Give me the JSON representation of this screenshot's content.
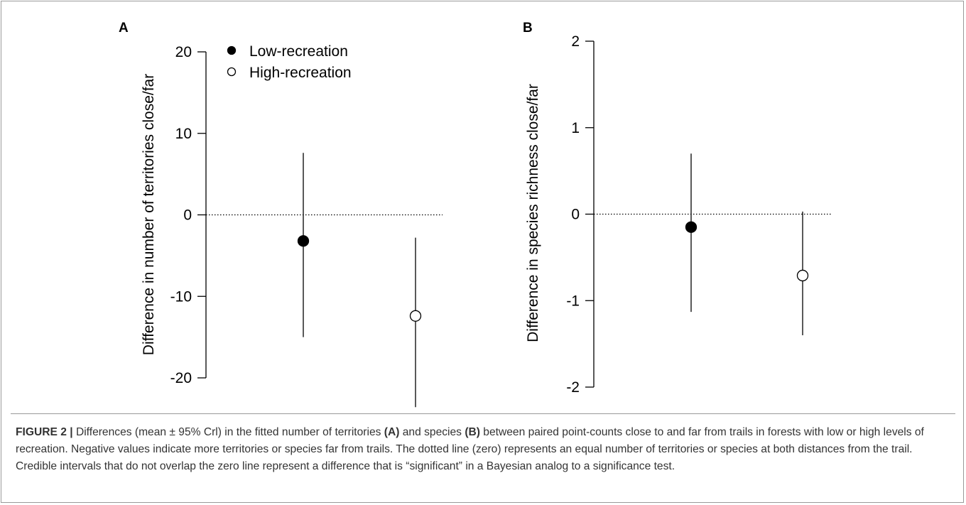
{
  "caption": {
    "label": "FIGURE 2 |",
    "t1": " Differences (mean ± 95% Crl) in the fitted number of territories ",
    "b1": "(A)",
    "t2": " and species ",
    "b2": "(B)",
    "t3": " between paired point-counts close to and far from trails in forests with low or high levels of recreation. Negative values indicate more territories or species far from trails. The dotted line (zero) represents an equal number of territories or species at both distances from the trail. Credible intervals that do not overlap the zero line represent a difference that is “significant” in a Bayesian analog to a significance test."
  },
  "legend": {
    "position": "top-left",
    "items": [
      {
        "label": "Low-recreation",
        "marker": "filled-circle"
      },
      {
        "label": "High-recreation",
        "marker": "open-circle"
      }
    ]
  },
  "chart_data": [
    {
      "type": "scatter",
      "panel": "A",
      "title": "",
      "xlabel": "",
      "ylabel": "Difference in number of territories close/far",
      "ylim": [
        -20,
        20
      ],
      "yticks": [
        20,
        10,
        0,
        -10,
        -20
      ],
      "grid": false,
      "reference_line": {
        "y": 0,
        "style": "dotted"
      },
      "categories": [
        "Low-recreation",
        "High-recreation"
      ],
      "series": [
        {
          "name": "Low-recreation",
          "marker": "filled",
          "mean": -3.2,
          "lower": -15.0,
          "upper": 7.6
        },
        {
          "name": "High-recreation",
          "marker": "open",
          "mean": -12.4,
          "lower": -23.6,
          "upper": -2.8
        }
      ]
    },
    {
      "type": "scatter",
      "panel": "B",
      "title": "",
      "xlabel": "",
      "ylabel": "Difference in species richness close/far",
      "ylim": [
        -2,
        2
      ],
      "yticks": [
        2,
        1,
        0,
        -1,
        -2
      ],
      "grid": false,
      "reference_line": {
        "y": 0,
        "style": "dotted"
      },
      "categories": [
        "Low-recreation",
        "High-recreation"
      ],
      "series": [
        {
          "name": "Low-recreation",
          "marker": "filled",
          "mean": -0.15,
          "lower": -1.13,
          "upper": 0.7
        },
        {
          "name": "High-recreation",
          "marker": "open",
          "mean": -0.71,
          "lower": -1.4,
          "upper": 0.03
        }
      ]
    }
  ]
}
